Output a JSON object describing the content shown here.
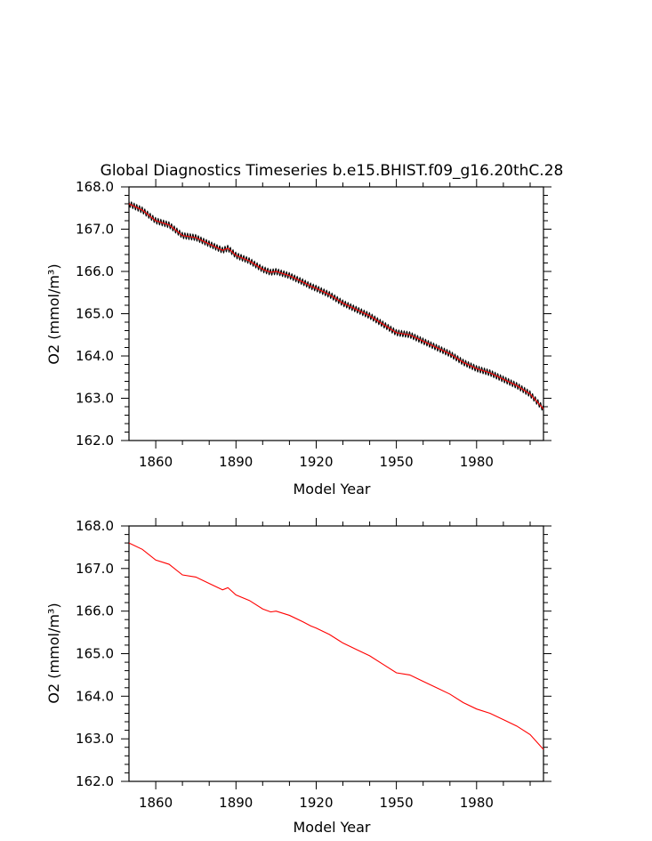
{
  "figure": {
    "title": "Global Diagnostics Timeseries b.e15.BHIST.f09_g16.20thC.28"
  },
  "chart_data": [
    {
      "type": "line",
      "xlabel": "Model Year",
      "ylabel": "O2 (mmol/m³)",
      "xlim": [
        1850,
        2005
      ],
      "ylim": [
        162.0,
        168.0
      ],
      "xticks": [
        1860,
        1890,
        1920,
        1950,
        1980
      ],
      "yticks": [
        162.0,
        163.0,
        164.0,
        165.0,
        166.0,
        167.0,
        168.0
      ],
      "series": [
        {
          "color": "#000000",
          "style": "monthly values with seasonal cycle",
          "seasonal_amplitude": 0.05,
          "x": [
            1850,
            1855,
            1860,
            1865,
            1870,
            1875,
            1880,
            1885,
            1887,
            1890,
            1895,
            1900,
            1903,
            1905,
            1910,
            1915,
            1918,
            1920,
            1925,
            1930,
            1935,
            1940,
            1945,
            1950,
            1955,
            1960,
            1965,
            1970,
            1975,
            1980,
            1985,
            1990,
            1995,
            2000,
            2005
          ],
          "y": [
            167.6,
            167.45,
            167.2,
            167.1,
            166.85,
            166.8,
            166.65,
            166.5,
            166.55,
            166.38,
            166.25,
            166.05,
            165.98,
            166.0,
            165.9,
            165.75,
            165.65,
            165.6,
            165.45,
            165.25,
            165.1,
            164.95,
            164.75,
            164.55,
            164.5,
            164.35,
            164.2,
            164.05,
            163.85,
            163.7,
            163.6,
            163.45,
            163.3,
            163.1,
            162.75
          ]
        },
        {
          "color": "#ff0000",
          "style": "annual mean",
          "x": [
            1850,
            1855,
            1860,
            1865,
            1870,
            1875,
            1880,
            1885,
            1887,
            1890,
            1895,
            1900,
            1903,
            1905,
            1910,
            1915,
            1918,
            1920,
            1925,
            1930,
            1935,
            1940,
            1945,
            1950,
            1955,
            1960,
            1965,
            1970,
            1975,
            1980,
            1985,
            1990,
            1995,
            2000,
            2005
          ],
          "y": [
            167.6,
            167.45,
            167.2,
            167.1,
            166.85,
            166.8,
            166.65,
            166.5,
            166.55,
            166.38,
            166.25,
            166.05,
            165.98,
            166.0,
            165.9,
            165.75,
            165.65,
            165.6,
            165.45,
            165.25,
            165.1,
            164.95,
            164.75,
            164.55,
            164.5,
            164.35,
            164.2,
            164.05,
            163.85,
            163.7,
            163.6,
            163.45,
            163.3,
            163.1,
            162.75
          ]
        }
      ]
    },
    {
      "type": "line",
      "xlabel": "Model Year",
      "ylabel": "O2 (mmol/m³)",
      "xlim": [
        1850,
        2005
      ],
      "ylim": [
        162.0,
        168.0
      ],
      "xticks": [
        1860,
        1890,
        1920,
        1950,
        1980
      ],
      "yticks": [
        162.0,
        163.0,
        164.0,
        165.0,
        166.0,
        167.0,
        168.0
      ],
      "series": [
        {
          "color": "#ff0000",
          "style": "annual mean",
          "x": [
            1850,
            1855,
            1860,
            1865,
            1870,
            1875,
            1880,
            1885,
            1887,
            1890,
            1895,
            1900,
            1903,
            1905,
            1910,
            1915,
            1918,
            1920,
            1925,
            1930,
            1935,
            1940,
            1945,
            1950,
            1955,
            1960,
            1965,
            1970,
            1975,
            1980,
            1985,
            1990,
            1995,
            2000,
            2005
          ],
          "y": [
            167.6,
            167.45,
            167.2,
            167.1,
            166.85,
            166.8,
            166.65,
            166.5,
            166.55,
            166.38,
            166.25,
            166.05,
            165.98,
            166.0,
            165.9,
            165.75,
            165.65,
            165.6,
            165.45,
            165.25,
            165.1,
            164.95,
            164.75,
            164.55,
            164.5,
            164.35,
            164.2,
            164.05,
            163.85,
            163.7,
            163.6,
            163.45,
            163.3,
            163.1,
            162.75
          ]
        }
      ]
    }
  ]
}
